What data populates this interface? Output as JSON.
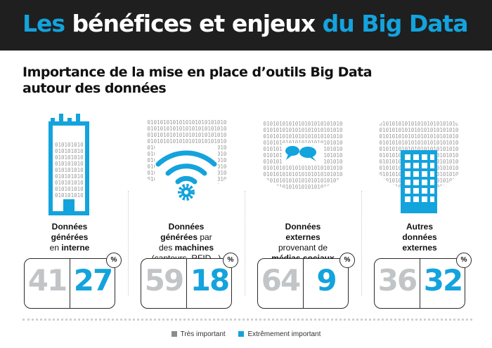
{
  "header": {
    "title_part1": "Les",
    "title_part2": " bénéfices et enjeux ",
    "title_part3": "du Big Data"
  },
  "subtitle_line1": "Importance de la mise en place d’outils Big Data",
  "subtitle_line2": "autour des données",
  "bits_text": "0101010101010101010101010",
  "percent_symbol": "%",
  "colors": {
    "gray": "#c2c5c7",
    "blue": "#13a3dd",
    "dark": "#1f1f1f"
  },
  "columns": [
    {
      "icon": "building-icon",
      "label_l1": "Données",
      "label_l2": "générées",
      "label_l3a": "en ",
      "label_l3b": "interne",
      "tres_important": "41",
      "extremement_important": "27"
    },
    {
      "icon": "wifi-gear-icon",
      "label_l1": "Données",
      "label_l2a": "générées",
      "label_l2b": " par",
      "label_l3a": "des ",
      "label_l3b": "machines",
      "label_l4": "(capteurs, RFID...)",
      "tres_important": "59",
      "extremement_important": "18"
    },
    {
      "icon": "speech-bubbles-icon",
      "label_l1": "Données",
      "label_l2": "externes",
      "label_l3": "provenant de",
      "label_l4": "médias sociaux",
      "tres_important": "64",
      "extremement_important": "9"
    },
    {
      "icon": "office-building-icon",
      "label_l1": "Autres",
      "label_l2": "données",
      "label_l3": "externes",
      "tres_important": "36",
      "extremement_important": "32"
    }
  ],
  "legend": [
    {
      "label": "Très important",
      "color": "#8c8c8c"
    },
    {
      "label": "Extrêmement important",
      "color": "#13a3dd"
    }
  ]
}
